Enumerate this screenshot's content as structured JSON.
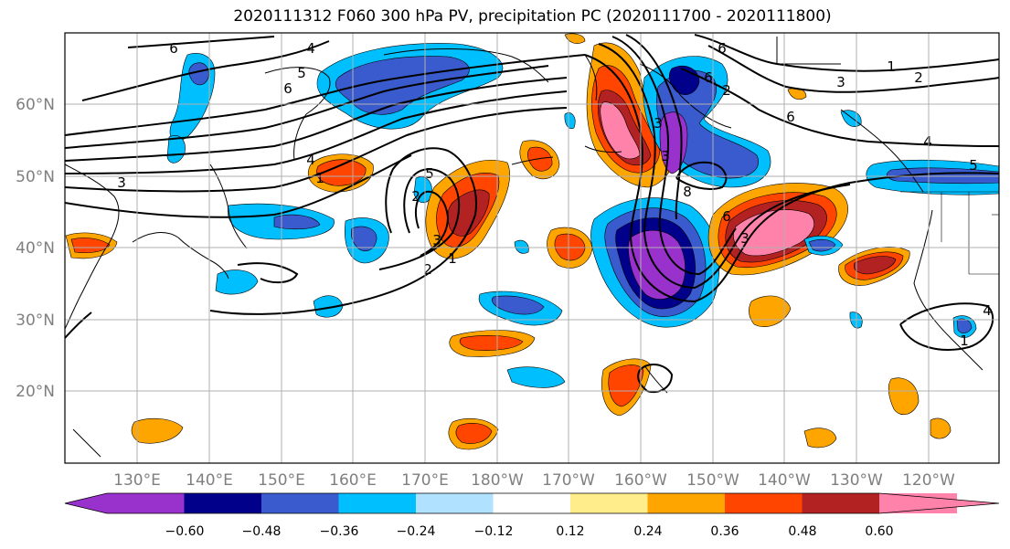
{
  "title": "2020111312 F060 300 hPa PV, precipitation PC (2020111700 - 2020111800)",
  "lat_labels": [
    "60°N",
    "50°N",
    "40°N",
    "30°N",
    "20°N"
  ],
  "lon_labels": [
    "130°E",
    "140°E",
    "150°E",
    "160°E",
    "170°E",
    "180°W",
    "170°W",
    "160°W",
    "150°W",
    "140°W",
    "130°W",
    "120°W"
  ],
  "colorbar": {
    "ticks": [
      "−0.60",
      "−0.48",
      "−0.36",
      "−0.24",
      "−0.12",
      "0.12",
      "0.24",
      "0.36",
      "0.48",
      "0.60"
    ],
    "colors": [
      "#9932CC",
      "#00008B",
      "#3A5BCD",
      "#00BFFF",
      "#B0E2FF",
      "#FFFFFF",
      "#FFEC8B",
      "#FFA500",
      "#FF4500",
      "#B22222",
      "#FF82AB"
    ]
  },
  "contour_labels": [
    "6",
    "4",
    "5",
    "6",
    "4",
    "3",
    "5",
    "2",
    "1",
    "3",
    "2",
    "6",
    "6",
    "5",
    "3",
    "3",
    "4",
    "2",
    "1",
    "3",
    "1",
    "1",
    "6",
    "8",
    "6",
    "3",
    "2",
    "4"
  ]
}
